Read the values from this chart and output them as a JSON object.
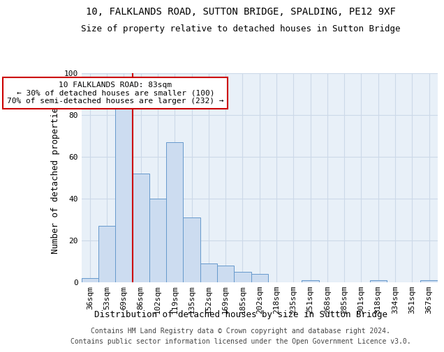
{
  "title_line1": "10, FALKLANDS ROAD, SUTTON BRIDGE, SPALDING, PE12 9XF",
  "title_line2": "Size of property relative to detached houses in Sutton Bridge",
  "xlabel": "Distribution of detached houses by size in Sutton Bridge",
  "ylabel": "Number of detached properties",
  "categories": [
    "36sqm",
    "53sqm",
    "69sqm",
    "86sqm",
    "102sqm",
    "119sqm",
    "135sqm",
    "152sqm",
    "169sqm",
    "185sqm",
    "202sqm",
    "218sqm",
    "235sqm",
    "251sqm",
    "268sqm",
    "285sqm",
    "301sqm",
    "318sqm",
    "334sqm",
    "351sqm",
    "367sqm"
  ],
  "values": [
    2,
    27,
    93,
    52,
    40,
    67,
    31,
    9,
    8,
    5,
    4,
    0,
    0,
    1,
    0,
    0,
    0,
    1,
    0,
    0,
    1
  ],
  "bar_color": "#ccdcf0",
  "bar_edge_color": "#6699cc",
  "grid_color": "#ccd9e8",
  "background_color": "#e8f0f8",
  "vline_after_index": 2,
  "vline_color": "#cc0000",
  "annotation_text": "10 FALKLANDS ROAD: 83sqm\n← 30% of detached houses are smaller (100)\n70% of semi-detached houses are larger (232) →",
  "annotation_box_color": "#ffffff",
  "annotation_box_edge": "#cc0000",
  "ylim": [
    0,
    100
  ],
  "yticks": [
    0,
    20,
    40,
    60,
    80,
    100
  ],
  "footnote_line1": "Contains HM Land Registry data © Crown copyright and database right 2024.",
  "footnote_line2": "Contains public sector information licensed under the Open Government Licence v3.0.",
  "title_fontsize": 10,
  "subtitle_fontsize": 9,
  "xlabel_fontsize": 9,
  "ylabel_fontsize": 9,
  "tick_fontsize": 8,
  "annot_fontsize": 8,
  "footnote_fontsize": 7
}
